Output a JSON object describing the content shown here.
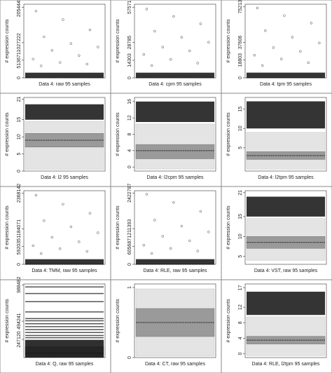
{
  "chart_data": [
    {
      "type": "box",
      "xlabel": "Data 4: raw 95 samples",
      "ylabel": "# expression counts",
      "ylim": [
        0,
        2150000
      ],
      "yticks": [
        0,
        513671,
        1027222,
        2054445
      ],
      "box": {
        "whisker_low": 0,
        "q1": 0,
        "median": 500,
        "q3": 3000,
        "whisker_high": 8000
      },
      "dense_range": [
        0,
        150000
      ],
      "outliers": [
        1950000,
        1700000,
        1400000,
        1200000,
        1000000,
        900000,
        800000,
        650000,
        550000,
        450000,
        400000,
        350000
      ]
    },
    {
      "type": "box",
      "xlabel": "Data 4: cpm 95 samples",
      "ylabel": "# expression counts",
      "ylim": [
        0,
        60000
      ],
      "yticks": [
        0,
        14303,
        28785,
        57571
      ],
      "box": {
        "whisker_low": 0,
        "q1": 0,
        "median": 15,
        "q3": 80,
        "whisker_high": 200
      },
      "dense_range": [
        0,
        4200
      ],
      "outliers": [
        56000,
        50000,
        44000,
        38000,
        33000,
        29000,
        25000,
        22000,
        19000,
        15000,
        12000,
        10000
      ]
    },
    {
      "type": "box",
      "xlabel": "Data 4: tpm 95 samples",
      "ylabel": "# expression counts",
      "ylim": [
        0,
        78000
      ],
      "yticks": [
        0,
        18803,
        37606,
        75213
      ],
      "box": {
        "whisker_low": 0,
        "q1": 0,
        "median": 20,
        "q3": 100,
        "whisker_high": 250
      },
      "dense_range": [
        0,
        5500
      ],
      "outliers": [
        74000,
        66000,
        58000,
        50000,
        43000,
        37000,
        32000,
        28000,
        24000,
        20000,
        16000,
        13000
      ]
    },
    {
      "type": "box",
      "xlabel": "Data 4: l2 95 samples",
      "ylabel": "# expression counts",
      "ylim": [
        0,
        21.5
      ],
      "yticks": [
        0,
        5,
        10,
        15,
        21
      ],
      "box": {
        "whisker_low": 0.5,
        "q1": 7,
        "median": 9,
        "q3": 11,
        "whisker_high": 14.5
      },
      "dense_range": [
        15,
        19.5
      ],
      "outliers": []
    },
    {
      "type": "box",
      "xlabel": "Data 4: l2cpm 95 samples",
      "ylabel": "# expression counts",
      "ylim": [
        -1,
        17
      ],
      "yticks": [
        0,
        4,
        8,
        12,
        16
      ],
      "box": {
        "whisker_low": -0.5,
        "q1": 2,
        "median": 4,
        "q3": 5.5,
        "whisker_high": 10.5
      },
      "dense_range": [
        11,
        16
      ],
      "outliers": []
    },
    {
      "type": "box",
      "xlabel": "Data 4: l2tpm 95 samples",
      "ylabel": "# expression counts",
      "ylim": [
        -1,
        18
      ],
      "yticks": [
        5,
        10,
        15
      ],
      "box": {
        "whisker_low": -0.5,
        "q1": 2,
        "median": 3,
        "q3": 4,
        "whisker_high": 9
      },
      "dense_range": [
        10,
        17
      ],
      "outliers": []
    },
    {
      "type": "box",
      "xlabel": "Data 4: TMM, raw 95 samples",
      "ylabel": "# expression counts",
      "ylim": [
        0,
        2450000
      ],
      "yticks": [
        0,
        592035,
        1184071,
        2368142
      ],
      "box": {
        "whisker_low": 0,
        "q1": 0,
        "median": 500,
        "q3": 3000,
        "whisker_high": 8000
      },
      "dense_range": [
        0,
        170000
      ],
      "outliers": [
        2300000,
        2000000,
        1700000,
        1450000,
        1250000,
        1050000,
        900000,
        750000,
        620000,
        520000,
        430000,
        360000
      ]
    },
    {
      "type": "box",
      "xlabel": "Data 4: RLE, raw 95 samples",
      "ylabel": "# expression counts",
      "ylim": [
        0,
        2500000
      ],
      "yticks": [
        0,
        605687,
        1211393,
        2422787
      ],
      "box": {
        "whisker_low": 0,
        "q1": 0,
        "median": 500,
        "q3": 3000,
        "whisker_high": 8000
      },
      "dense_range": [
        0,
        175000
      ],
      "outliers": [
        2380000,
        2100000,
        1800000,
        1500000,
        1300000,
        1100000,
        950000,
        800000,
        650000,
        540000,
        450000,
        370000
      ]
    },
    {
      "type": "box",
      "xlabel": "Data 4: VST, raw 95 samples",
      "ylabel": "# expression counts",
      "ylim": [
        3,
        21.5
      ],
      "yticks": [
        5,
        10,
        15,
        21
      ],
      "box": {
        "whisker_low": 4,
        "q1": 7,
        "median": 8.5,
        "q3": 10,
        "whisker_high": 14.5
      },
      "dense_range": [
        15,
        20
      ],
      "outliers": []
    },
    {
      "type": "box",
      "xlabel": "Data 4: Q, raw 95 samples",
      "ylabel": "# expression counts",
      "ylim": [
        0,
        1000000
      ],
      "yticks": [
        247120,
        494241,
        988482
      ],
      "box": {
        "whisker_low": 0,
        "q1": 0,
        "median": 60000,
        "q3": 150000,
        "whisker_high": 240000
      },
      "dense_range": [
        0,
        240000
      ],
      "levels": [
        960000,
        870000,
        760000,
        620000,
        530000,
        500000,
        460000,
        420000,
        380000,
        340000,
        300000,
        270000
      ],
      "outliers": []
    },
    {
      "type": "box",
      "xlabel": "Data 4: CT, raw 95 samples",
      "ylabel": "# expression counts",
      "ylim": [
        0,
        1.05
      ],
      "yticks": [
        0,
        1
      ],
      "box": {
        "whisker_low": 0.02,
        "q1": 0.3,
        "median": 0.5,
        "q3": 0.7,
        "whisker_high": 0.98
      },
      "outliers": []
    },
    {
      "type": "box",
      "xlabel": "Data 4: RLE, l2tpm 95 samples",
      "ylabel": "# expression counts",
      "ylim": [
        -1,
        18
      ],
      "yticks": [
        0,
        4,
        8,
        12,
        17
      ],
      "box": {
        "whisker_low": -0.5,
        "q1": 2.5,
        "median": 3.5,
        "q3": 4.5,
        "whisker_high": 9.5
      },
      "dense_range": [
        10,
        16
      ],
      "outliers": []
    }
  ]
}
